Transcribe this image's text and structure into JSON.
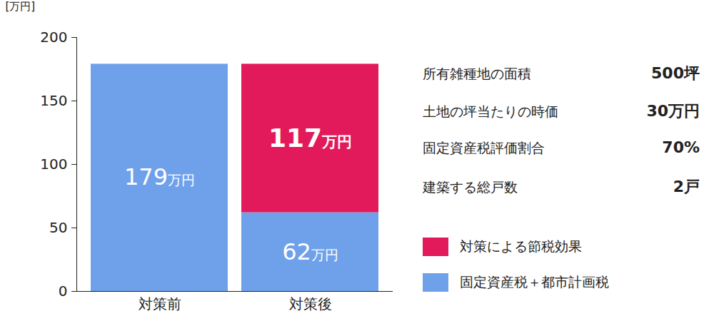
{
  "chart_data": {
    "type": "bar",
    "stacked": true,
    "ylabel": "[万円]",
    "categories": [
      "対策前",
      "対策後"
    ],
    "series": [
      {
        "name": "固定資産税＋都市計画税",
        "color": "#6fa1ea",
        "values": [
          179,
          62
        ],
        "value_labels": [
          "179万円",
          "62万円"
        ]
      },
      {
        "name": "対策による節税効果",
        "color": "#e2195a",
        "values": [
          null,
          117
        ],
        "value_labels": [
          null,
          "117万円"
        ]
      }
    ],
    "ylim": [
      0,
      200
    ],
    "yticks": [
      0,
      50,
      100,
      150,
      200
    ],
    "data_labels": true,
    "legend": "right",
    "info": [
      {
        "label": "所有雑種地の面積",
        "value": "500坪"
      },
      {
        "label": "土地の坪当たりの時価",
        "value": "30万円"
      },
      {
        "label": "固定資産税評価割合",
        "value": "70%"
      },
      {
        "label": "建築する総戸数",
        "value": "2戸"
      }
    ]
  }
}
